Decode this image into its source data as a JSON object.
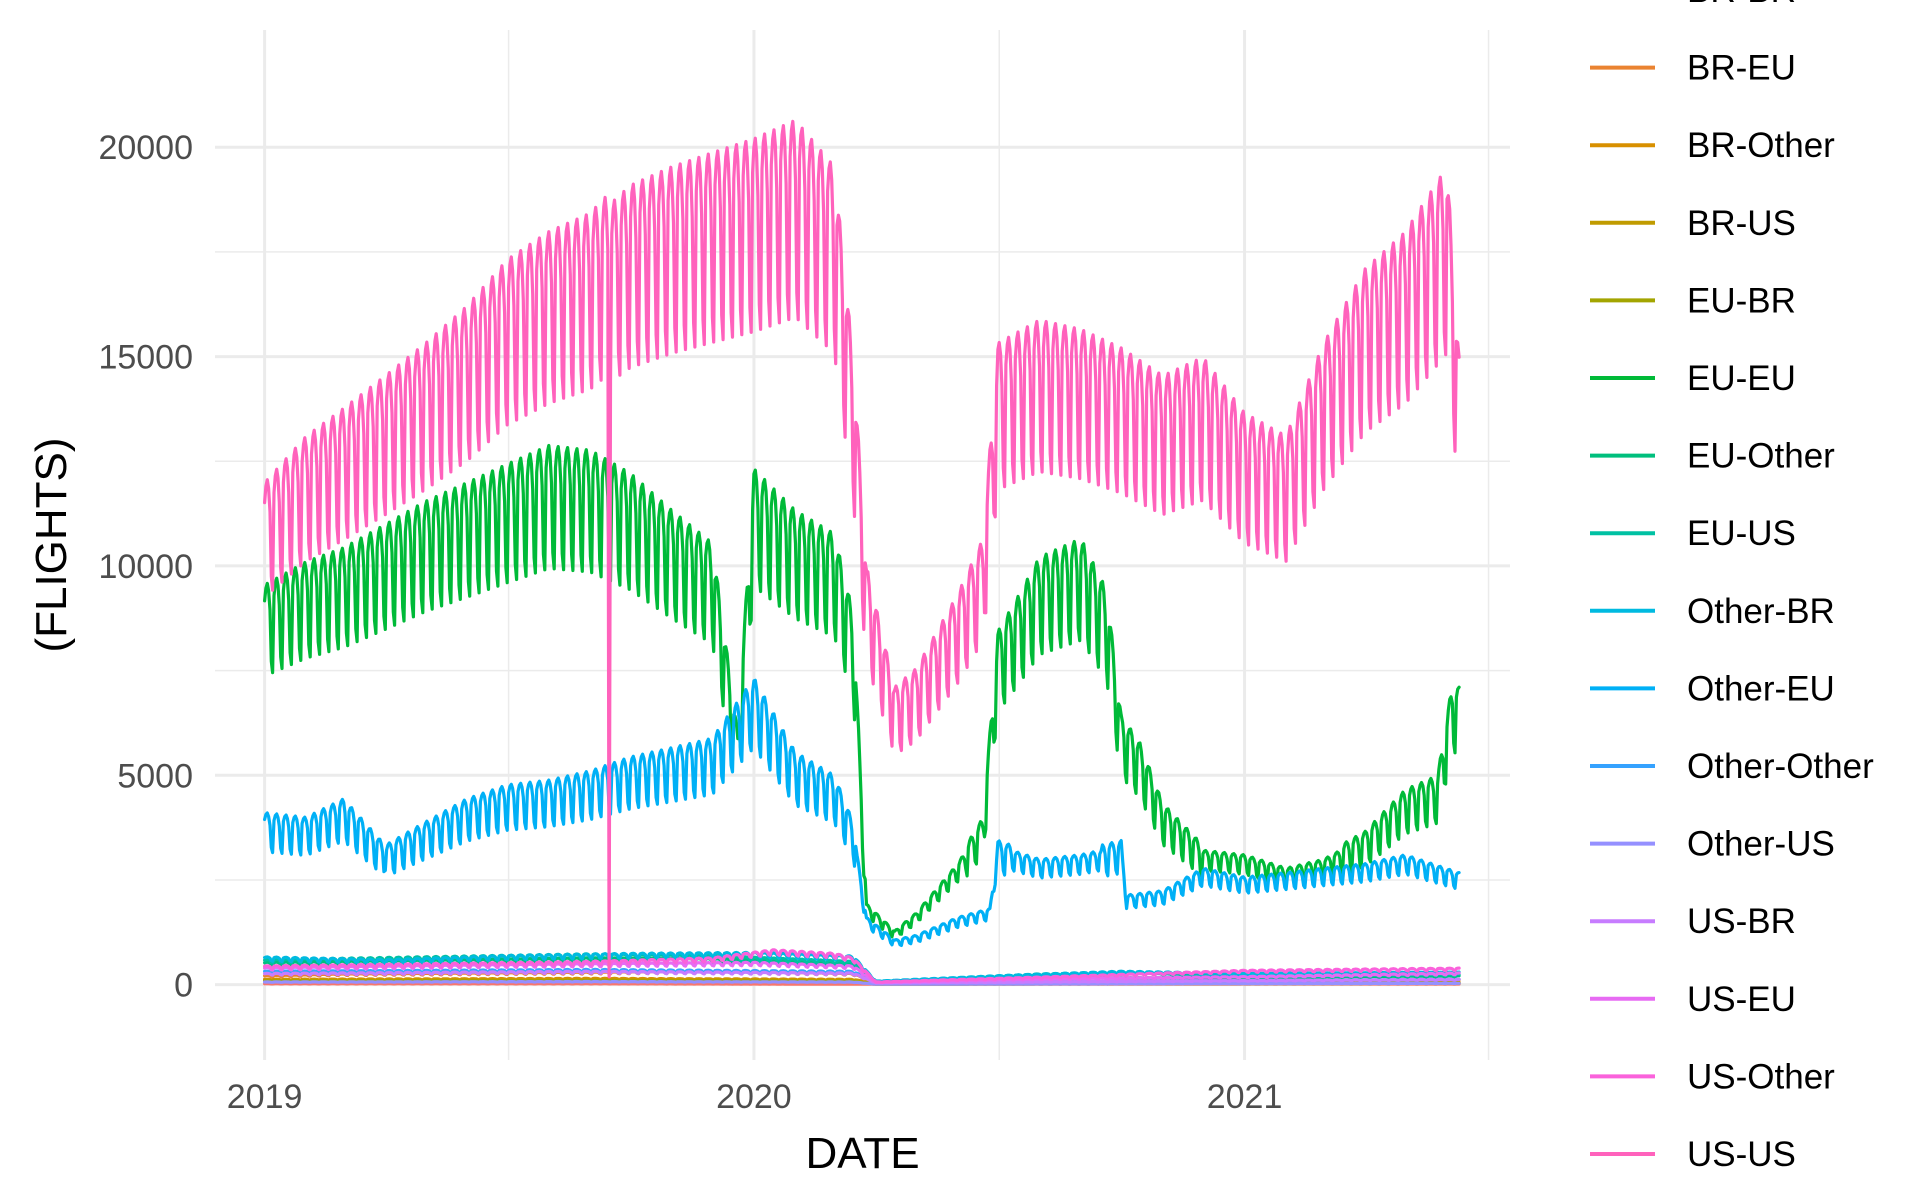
{
  "chart_data": {
    "type": "line",
    "title": "",
    "xlabel": "DATE",
    "ylabel": "(FLIGHTS)",
    "x_range": [
      "2018-11-25",
      "2021-07-18"
    ],
    "x_ticks": [
      "2019-01-01",
      "2020-01-01",
      "2021-01-01"
    ],
    "x_tick_labels": [
      "2019",
      "2020",
      "2021"
    ],
    "ylim": [
      -1800,
      22800
    ],
    "y_ticks": [
      0,
      5000,
      10000,
      15000,
      20000
    ],
    "y_tick_labels": [
      "0",
      "5000",
      "10000",
      "15000",
      "20000"
    ],
    "grid": true,
    "legend_position": "right",
    "series": [
      {
        "name": "BR-BR",
        "color": "#F8766D",
        "points": [
          [
            "2019-01-01",
            20
          ],
          [
            "2019-09-15",
            20
          ],
          [
            "2020-03-25",
            10
          ],
          [
            "2021-06-10",
            15
          ]
        ]
      },
      {
        "name": "BR-EU",
        "color": "#EA8331",
        "points": [
          [
            "2019-01-01",
            200
          ],
          [
            "2019-03-01",
            240
          ],
          [
            "2019-06-01",
            260
          ],
          [
            "2019-09-01",
            280
          ],
          [
            "2019-12-01",
            300
          ],
          [
            "2020-03-15",
            250
          ],
          [
            "2020-04-01",
            40
          ],
          [
            "2020-08-01",
            60
          ],
          [
            "2021-01-01",
            90
          ],
          [
            "2021-06-10",
            110
          ]
        ]
      },
      {
        "name": "BR-Other",
        "color": "#D89000",
        "points": [
          [
            "2019-01-01",
            120
          ],
          [
            "2019-09-01",
            140
          ],
          [
            "2020-03-15",
            120
          ],
          [
            "2020-04-01",
            20
          ],
          [
            "2021-06-10",
            50
          ]
        ]
      },
      {
        "name": "BR-US",
        "color": "#C09B00",
        "points": [
          [
            "2019-01-01",
            100
          ],
          [
            "2019-09-01",
            110
          ],
          [
            "2020-03-15",
            100
          ],
          [
            "2020-04-01",
            15
          ],
          [
            "2021-06-10",
            40
          ]
        ]
      },
      {
        "name": "EU-BR",
        "color": "#A3A500",
        "points": [
          [
            "2019-01-01",
            80
          ],
          [
            "2019-09-01",
            90
          ],
          [
            "2020-03-15",
            80
          ],
          [
            "2020-04-01",
            10
          ],
          [
            "2021-06-10",
            30
          ]
        ]
      },
      {
        "name": "EU-EU",
        "color": "#00BA38",
        "points": [
          [
            "2019-01-01",
            8600
          ],
          [
            "2019-02-01",
            9100
          ],
          [
            "2019-03-01",
            9400
          ],
          [
            "2019-04-01",
            9900
          ],
          [
            "2019-05-01",
            10400
          ],
          [
            "2019-06-01",
            10800
          ],
          [
            "2019-07-01",
            11200
          ],
          [
            "2019-08-01",
            11600
          ],
          [
            "2019-09-01",
            11500
          ],
          [
            "2019-10-01",
            11000
          ],
          [
            "2019-11-01",
            10200
          ],
          [
            "2019-12-01",
            9500
          ],
          [
            "2019-12-20",
            5400
          ],
          [
            "2020-01-01",
            11100
          ],
          [
            "2020-02-01",
            10200
          ],
          [
            "2020-03-01",
            9700
          ],
          [
            "2020-03-15",
            8000
          ],
          [
            "2020-03-25",
            1800
          ],
          [
            "2020-04-15",
            1200
          ],
          [
            "2020-05-01",
            1600
          ],
          [
            "2020-06-01",
            2700
          ],
          [
            "2020-06-20",
            3600
          ],
          [
            "2020-07-01",
            7600
          ],
          [
            "2020-07-15",
            8300
          ],
          [
            "2020-08-01",
            9200
          ],
          [
            "2020-09-01",
            9600
          ],
          [
            "2020-09-20",
            8500
          ],
          [
            "2020-10-01",
            5800
          ],
          [
            "2020-10-15",
            5200
          ],
          [
            "2020-11-01",
            3900
          ],
          [
            "2020-12-01",
            3000
          ],
          [
            "2021-01-01",
            2900
          ],
          [
            "2021-02-01",
            2600
          ],
          [
            "2021-03-01",
            2800
          ],
          [
            "2021-04-01",
            3300
          ],
          [
            "2021-05-01",
            4200
          ],
          [
            "2021-05-25",
            4500
          ],
          [
            "2021-06-05",
            6500
          ],
          [
            "2021-06-10",
            6400
          ]
        ]
      },
      {
        "name": "EU-Other",
        "color": "#00BF7D",
        "points": [
          [
            "2019-01-01",
            500
          ],
          [
            "2019-06-01",
            560
          ],
          [
            "2019-09-01",
            600
          ],
          [
            "2019-12-01",
            580
          ],
          [
            "2020-03-15",
            480
          ],
          [
            "2020-04-01",
            60
          ],
          [
            "2020-08-01",
            150
          ],
          [
            "2021-01-01",
            160
          ],
          [
            "2021-06-10",
            200
          ]
        ]
      },
      {
        "name": "EU-US",
        "color": "#00C1A3",
        "points": [
          [
            "2019-01-01",
            560
          ],
          [
            "2019-06-01",
            640
          ],
          [
            "2019-09-01",
            690
          ],
          [
            "2019-12-01",
            650
          ],
          [
            "2020-03-15",
            520
          ],
          [
            "2020-04-01",
            60
          ],
          [
            "2020-08-01",
            240
          ],
          [
            "2020-10-01",
            280
          ],
          [
            "2021-01-01",
            180
          ],
          [
            "2021-06-10",
            230
          ]
        ]
      },
      {
        "name": "Other-BR",
        "color": "#00BAE0",
        "points": [
          [
            "2019-01-01",
            620
          ],
          [
            "2019-04-01",
            560
          ],
          [
            "2019-07-01",
            650
          ],
          [
            "2019-10-01",
            700
          ],
          [
            "2020-01-01",
            720
          ],
          [
            "2020-03-15",
            640
          ],
          [
            "2020-04-01",
            80
          ],
          [
            "2020-07-01",
            200
          ],
          [
            "2020-10-01",
            300
          ],
          [
            "2021-01-01",
            250
          ],
          [
            "2021-06-10",
            280
          ]
        ]
      },
      {
        "name": "Other-EU",
        "color": "#00B0F6",
        "points": [
          [
            "2019-01-01",
            3700
          ],
          [
            "2019-02-01",
            3600
          ],
          [
            "2019-03-01",
            4000
          ],
          [
            "2019-04-01",
            3000
          ],
          [
            "2019-05-01",
            3500
          ],
          [
            "2019-06-01",
            4000
          ],
          [
            "2019-07-01",
            4300
          ],
          [
            "2019-08-01",
            4400
          ],
          [
            "2019-09-01",
            4600
          ],
          [
            "2019-10-01",
            4900
          ],
          [
            "2019-11-01",
            5100
          ],
          [
            "2019-12-01",
            5300
          ],
          [
            "2020-01-01",
            6600
          ],
          [
            "2020-02-01",
            5000
          ],
          [
            "2020-03-01",
            4500
          ],
          [
            "2020-03-15",
            3500
          ],
          [
            "2020-03-25",
            1500
          ],
          [
            "2020-04-15",
            1000
          ],
          [
            "2020-05-01",
            1100
          ],
          [
            "2020-06-01",
            1500
          ],
          [
            "2020-06-25",
            1700
          ],
          [
            "2020-07-01",
            3100
          ],
          [
            "2020-08-01",
            2800
          ],
          [
            "2020-09-01",
            2900
          ],
          [
            "2020-10-01",
            3100
          ],
          [
            "2020-10-05",
            2000
          ],
          [
            "2020-11-01",
            2100
          ],
          [
            "2020-12-01",
            2600
          ],
          [
            "2021-01-01",
            2400
          ],
          [
            "2021-02-01",
            2500
          ],
          [
            "2021-03-01",
            2600
          ],
          [
            "2021-04-01",
            2700
          ],
          [
            "2021-05-01",
            2900
          ],
          [
            "2021-06-10",
            2500
          ]
        ]
      },
      {
        "name": "Other-Other",
        "color": "#35A2FF",
        "points": [
          [
            "2019-01-01",
            300
          ],
          [
            "2019-09-01",
            340
          ],
          [
            "2020-03-15",
            300
          ],
          [
            "2020-04-01",
            40
          ],
          [
            "2021-06-10",
            120
          ]
        ]
      },
      {
        "name": "Other-US",
        "color": "#9590FF",
        "points": [
          [
            "2019-01-01",
            60
          ],
          [
            "2019-09-01",
            70
          ],
          [
            "2020-03-15",
            60
          ],
          [
            "2020-04-01",
            10
          ],
          [
            "2021-06-10",
            30
          ]
        ]
      },
      {
        "name": "US-BR",
        "color": "#C77CFF",
        "points": [
          [
            "2019-01-01",
            250
          ],
          [
            "2019-09-01",
            300
          ],
          [
            "2020-03-15",
            260
          ],
          [
            "2020-04-01",
            40
          ],
          [
            "2021-06-10",
            120
          ]
        ]
      },
      {
        "name": "US-EU",
        "color": "#E76BF3",
        "points": [
          [
            "2019-01-01",
            380
          ],
          [
            "2019-06-01",
            440
          ],
          [
            "2019-09-01",
            470
          ],
          [
            "2020-01-01",
            500
          ],
          [
            "2020-03-15",
            420
          ],
          [
            "2020-04-01",
            50
          ],
          [
            "2020-08-01",
            130
          ],
          [
            "2021-01-01",
            180
          ],
          [
            "2021-06-10",
            260
          ]
        ]
      },
      {
        "name": "US-Other",
        "color": "#FA62DB",
        "points": [
          [
            "2019-01-01",
            420
          ],
          [
            "2019-06-01",
            480
          ],
          [
            "2019-09-01",
            520
          ],
          [
            "2019-12-01",
            600
          ],
          [
            "2020-01-15",
            780
          ],
          [
            "2020-03-01",
            700
          ],
          [
            "2020-03-15",
            600
          ],
          [
            "2020-04-01",
            60
          ],
          [
            "2020-08-01",
            170
          ],
          [
            "2021-01-01",
            320
          ],
          [
            "2021-06-10",
            370
          ]
        ]
      },
      {
        "name": "US-US",
        "color": "#FF62BC",
        "points": [
          [
            "2019-01-01",
            10800
          ],
          [
            "2019-02-01",
            11800
          ],
          [
            "2019-03-01",
            12400
          ],
          [
            "2019-04-01",
            13100
          ],
          [
            "2019-05-01",
            13800
          ],
          [
            "2019-06-01",
            14600
          ],
          [
            "2019-07-01",
            15600
          ],
          [
            "2019-08-01",
            16200
          ],
          [
            "2019-09-01",
            16600
          ],
          [
            "2019-09-14",
            17000
          ],
          [
            "2019-09-15",
            200
          ],
          [
            "2019-09-16",
            16800
          ],
          [
            "2019-10-01",
            17200
          ],
          [
            "2019-11-01",
            17600
          ],
          [
            "2019-12-01",
            17900
          ],
          [
            "2020-01-01",
            18200
          ],
          [
            "2020-02-01",
            18600
          ],
          [
            "2020-03-01",
            17600
          ],
          [
            "2020-03-15",
            13500
          ],
          [
            "2020-03-25",
            9000
          ],
          [
            "2020-04-15",
            6400
          ],
          [
            "2020-05-01",
            6800
          ],
          [
            "2020-06-01",
            8400
          ],
          [
            "2020-06-20",
            9600
          ],
          [
            "2020-07-01",
            13800
          ],
          [
            "2020-08-01",
            14300
          ],
          [
            "2020-09-01",
            14100
          ],
          [
            "2020-10-01",
            13700
          ],
          [
            "2020-11-01",
            13100
          ],
          [
            "2020-12-01",
            13500
          ],
          [
            "2021-01-01",
            12300
          ],
          [
            "2021-02-01",
            11800
          ],
          [
            "2021-03-01",
            13800
          ],
          [
            "2021-04-01",
            15400
          ],
          [
            "2021-05-01",
            16200
          ],
          [
            "2021-06-01",
            17600
          ],
          [
            "2021-06-10",
            13500
          ]
        ]
      }
    ]
  }
}
